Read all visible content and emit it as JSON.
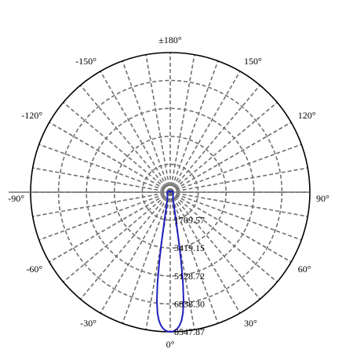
{
  "chart_data": {
    "type": "polar-line",
    "title": "",
    "angle_unit": "degrees",
    "angle_zero": "bottom",
    "angular_ticks": [
      {
        "angle": 0,
        "label": "0°"
      },
      {
        "angle": 30,
        "label": "30°"
      },
      {
        "angle": 60,
        "label": "60°"
      },
      {
        "angle": 90,
        "label": "90°"
      },
      {
        "angle": 120,
        "label": "120°"
      },
      {
        "angle": 150,
        "label": "150°"
      },
      {
        "angle": 180,
        "label": "±180°"
      },
      {
        "angle": -150,
        "label": "-150°"
      },
      {
        "angle": -120,
        "label": "-120°"
      },
      {
        "angle": -90,
        "label": "-90°"
      },
      {
        "angle": -60,
        "label": "-60°"
      },
      {
        "angle": -30,
        "label": "-30°"
      }
    ],
    "radial_ticks": [
      {
        "value": 1709.57,
        "label": "1709.57"
      },
      {
        "value": 3419.15,
        "label": "3419.15"
      },
      {
        "value": 5128.72,
        "label": "5128.72"
      },
      {
        "value": 6838.3,
        "label": "6838.30"
      },
      {
        "value": 8547.87,
        "label": "8547.87"
      }
    ],
    "rmax": 8547.87,
    "grid": true,
    "series": [
      {
        "color": "#1f1fbf",
        "points": [
          {
            "angle": 0,
            "r": 8547.87
          },
          {
            "angle": 1,
            "r": 8530
          },
          {
            "angle": 2,
            "r": 8470
          },
          {
            "angle": 3,
            "r": 8360
          },
          {
            "angle": 4,
            "r": 8180
          },
          {
            "angle": 5,
            "r": 7900
          },
          {
            "angle": 6,
            "r": 7450
          },
          {
            "angle": 7,
            "r": 6700
          },
          {
            "angle": 8,
            "r": 5600
          },
          {
            "angle": 9,
            "r": 4200
          },
          {
            "angle": 10,
            "r": 2900
          },
          {
            "angle": 12,
            "r": 1600
          },
          {
            "angle": 15,
            "r": 900
          },
          {
            "angle": 20,
            "r": 520
          },
          {
            "angle": 30,
            "r": 330
          },
          {
            "angle": 45,
            "r": 250
          },
          {
            "angle": 60,
            "r": 210
          },
          {
            "angle": 90,
            "r": 170
          },
          {
            "angle": 120,
            "r": 120
          },
          {
            "angle": 150,
            "r": 60
          },
          {
            "angle": 180,
            "r": 0
          },
          {
            "angle": -150,
            "r": 60
          },
          {
            "angle": -120,
            "r": 120
          },
          {
            "angle": -90,
            "r": 170
          },
          {
            "angle": -60,
            "r": 210
          },
          {
            "angle": -45,
            "r": 250
          },
          {
            "angle": -30,
            "r": 330
          },
          {
            "angle": -20,
            "r": 520
          },
          {
            "angle": -15,
            "r": 900
          },
          {
            "angle": -12,
            "r": 1600
          },
          {
            "angle": -10,
            "r": 2900
          },
          {
            "angle": -9,
            "r": 4200
          },
          {
            "angle": -8,
            "r": 5600
          },
          {
            "angle": -7,
            "r": 6700
          },
          {
            "angle": -6,
            "r": 7450
          },
          {
            "angle": -5,
            "r": 7900
          },
          {
            "angle": -4,
            "r": 8180
          },
          {
            "angle": -3,
            "r": 8360
          },
          {
            "angle": -2,
            "r": 8470
          },
          {
            "angle": -1,
            "r": 8530
          }
        ]
      }
    ]
  }
}
